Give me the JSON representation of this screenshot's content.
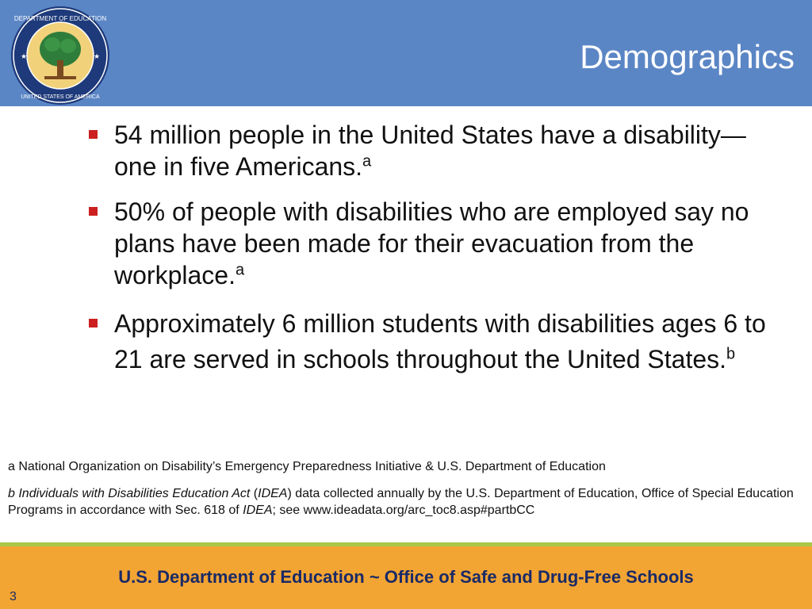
{
  "header": {
    "title": "Demographics",
    "seal_text": "DEPARTMENT OF EDUCATION • UNITED STATES OF AMERICA",
    "seal_icon": "department-of-education-seal"
  },
  "bullets": [
    {
      "text": "54 million people in the United States have a disability— one in five Americans.",
      "ref": "a"
    },
    {
      "text": "50% of people with disabilities who are employed say no plans have been made for their evacuation from the workplace.",
      "ref": "a"
    },
    {
      "text": "Approximately 6 million students with disabilities ages 6 to 21 are served in schools throughout the United States.",
      "ref": "b"
    }
  ],
  "footnotes": {
    "a": "a National Organization on Disability’s Emergency Preparedness Initiative & U.S. Department of Education",
    "b_prefix": "b Individuals with Disabilities Education Act",
    "b_open_paren": " (",
    "b_idea": "IDEA",
    "b_mid": ") data collected annually by the U.S. Department of Education, Office of Special Education Programs in accordance with Sec. 618 of ",
    "b_idea2": "IDEA",
    "b_end": "; see www.ideadata.org/arc_toc8.asp#partbCC"
  },
  "footer": {
    "text": "U.S. Department of Education ~ Office of Safe and Drug-Free Schools",
    "page_number": "3"
  },
  "colors": {
    "header_bg": "#5b86c5",
    "bullet_marker": "#cc1f1f",
    "footer_bg": "#f3a533",
    "divider": "#a9c74a",
    "footer_text": "#1a2a66"
  }
}
